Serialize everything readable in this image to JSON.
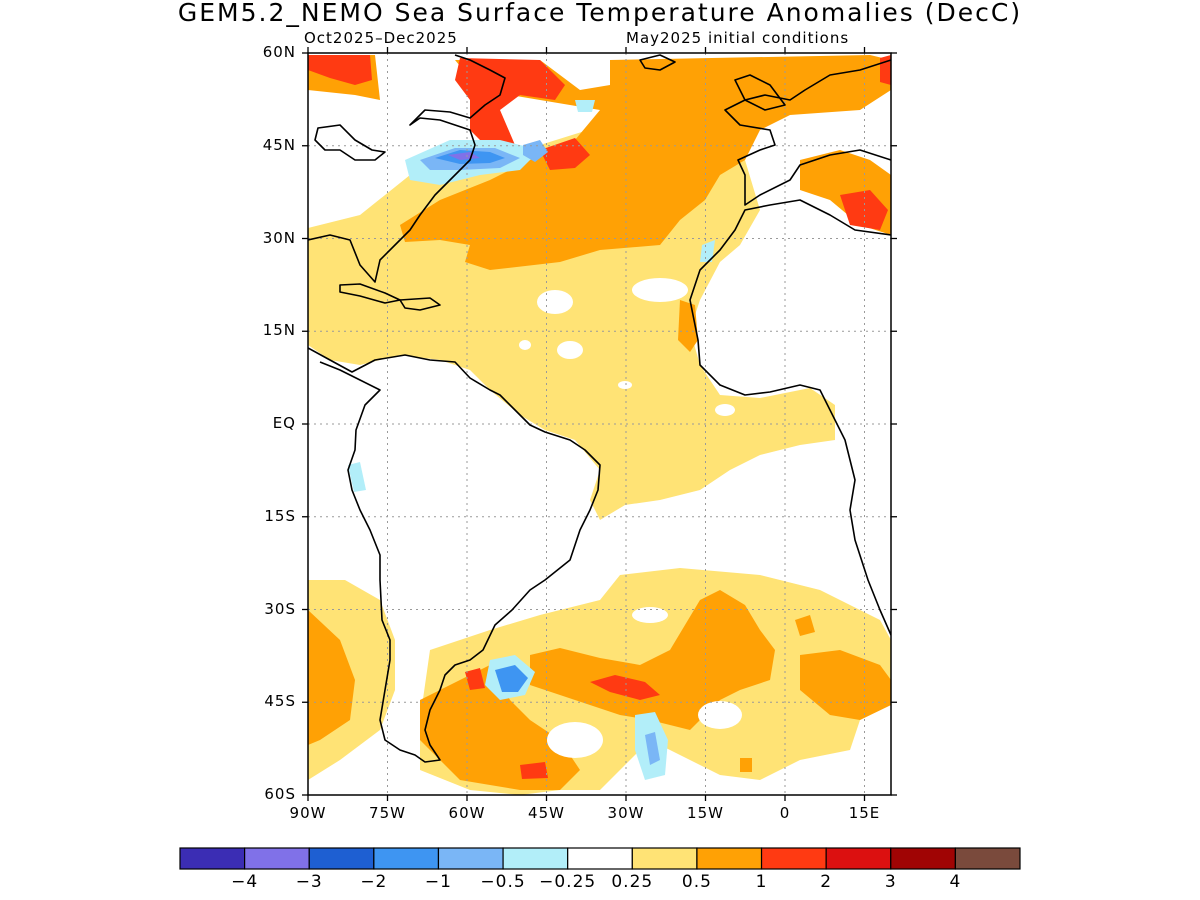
{
  "figure": {
    "title": "GEM5.2_NEMO Sea Surface Temperature Anomalies (DecC)",
    "subtitle_left": "Oct2025–Dec2025",
    "subtitle_right": "May2025 initial conditions"
  },
  "map": {
    "lat_range": [
      -60,
      60
    ],
    "lon_range": [
      -90,
      20
    ],
    "lat_ticks": [
      {
        "value": 60,
        "label": "60N"
      },
      {
        "value": 45,
        "label": "45N"
      },
      {
        "value": 30,
        "label": "30N"
      },
      {
        "value": 15,
        "label": "15N"
      },
      {
        "value": 0,
        "label": "EQ"
      },
      {
        "value": -15,
        "label": "15S"
      },
      {
        "value": -30,
        "label": "30S"
      },
      {
        "value": -45,
        "label": "45S"
      },
      {
        "value": -60,
        "label": "60S"
      }
    ],
    "lon_ticks": [
      {
        "value": -90,
        "label": "90W"
      },
      {
        "value": -75,
        "label": "75W"
      },
      {
        "value": -60,
        "label": "60W"
      },
      {
        "value": -45,
        "label": "45W"
      },
      {
        "value": -30,
        "label": "30W"
      },
      {
        "value": -15,
        "label": "15W"
      },
      {
        "value": 0,
        "label": "0"
      },
      {
        "value": 15,
        "label": "15E"
      }
    ],
    "grid": "dotted"
  },
  "colorbar": {
    "colors": [
      "#3b2db4",
      "#8071e8",
      "#1e5fd2",
      "#3e95f2",
      "#7ab6f6",
      "#b2eef9",
      "#ffffff",
      "#ffe375",
      "#ffa105",
      "#ff3a12",
      "#dc1010",
      "#a00404",
      "#7a4a3c"
    ],
    "labels": [
      "−4",
      "−3",
      "−2",
      "−1",
      "−0.5",
      "−0.25",
      "0.25",
      "0.5",
      "1",
      "2",
      "3",
      "4"
    ]
  },
  "colors": {
    "land_outline": "#000000",
    "grid": "#9a9a9a"
  }
}
